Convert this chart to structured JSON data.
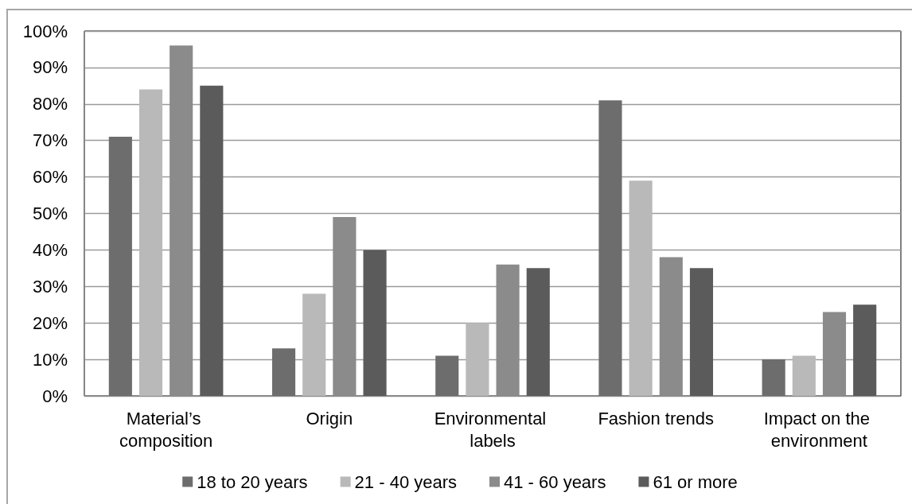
{
  "chart_data": {
    "type": "bar",
    "categories": [
      "Material’s composition",
      "Origin",
      "Environmental labels",
      "Fashion trends",
      "Impact on the environment"
    ],
    "series": [
      {
        "name": "18 to 20 years",
        "color": "#6d6d6d",
        "values": [
          71,
          13,
          11,
          81,
          10
        ]
      },
      {
        "name": "21 - 40 years",
        "color": "#b9b9b9",
        "values": [
          84,
          28,
          20,
          59,
          11
        ]
      },
      {
        "name": "41 - 60 years",
        "color": "#8b8b8b",
        "values": [
          96,
          49,
          36,
          38,
          23
        ]
      },
      {
        "name": "61 or more",
        "color": "#5b5b5b",
        "values": [
          85,
          40,
          35,
          35,
          25
        ]
      }
    ],
    "ylim": [
      0,
      100
    ],
    "yticks": [
      {
        "value": 0,
        "label": "0%"
      },
      {
        "value": 10,
        "label": "10%"
      },
      {
        "value": 20,
        "label": "20%"
      },
      {
        "value": 30,
        "label": "30%"
      },
      {
        "value": 40,
        "label": "40%"
      },
      {
        "value": 50,
        "label": "50%"
      },
      {
        "value": 60,
        "label": "60%"
      },
      {
        "value": 70,
        "label": "70%"
      },
      {
        "value": 80,
        "label": "80%"
      },
      {
        "value": 90,
        "label": "90%"
      },
      {
        "value": 100,
        "label": "100%"
      }
    ],
    "grid": "y",
    "legend": "bottom"
  }
}
